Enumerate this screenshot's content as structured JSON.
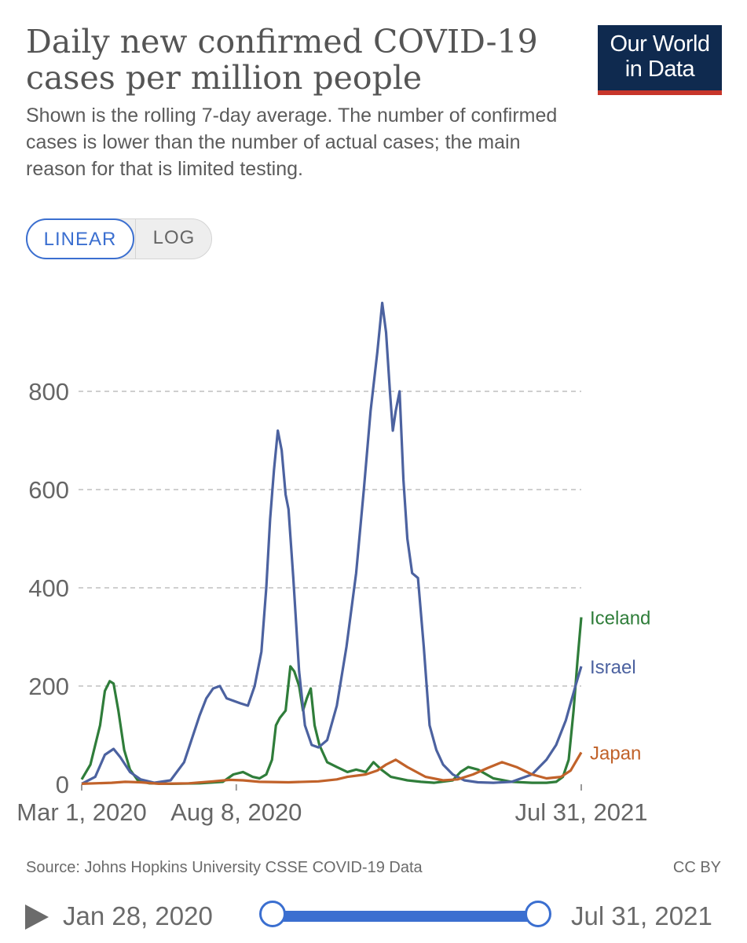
{
  "header": {
    "title": "Daily new confirmed COVID-19 cases per million people",
    "subtitle": "Shown is the rolling 7-day average. The number of confirmed cases is lower than the number of actual cases; the main reason for that is limited testing.",
    "logo_line1": "Our World",
    "logo_line2": "in Data"
  },
  "controls": {
    "linear_label": "LINEAR",
    "log_label": "LOG",
    "active": "LINEAR"
  },
  "footer": {
    "source": "Source: Johns Hopkins University CSSE COVID-19 Data",
    "license": "CC BY"
  },
  "timeline": {
    "start_label": "Jan 28, 2020",
    "end_label": "Jul 31, 2021"
  },
  "colors": {
    "accent": "#3b6fd0",
    "logo_bg": "#0f2a4f",
    "logo_bar": "#c7362b",
    "iceland": "#2f7d3a",
    "israel": "#4c62a0",
    "japan": "#c1622a"
  },
  "chart_data": {
    "type": "line",
    "x_range": [
      "2020-03-01",
      "2021-07-31"
    ],
    "x_ticks": [
      "Mar 1, 2020",
      "Aug 8, 2020",
      "Jul 31, 2021"
    ],
    "x_tick_dates": [
      "2020-03-01",
      "2020-08-08",
      "2021-07-31"
    ],
    "ylim": [
      0,
      1000
    ],
    "y_ticks": [
      0,
      200,
      400,
      600,
      800
    ],
    "gridlines": "dashed",
    "series": [
      {
        "name": "Iceland",
        "color": "#2f7d3a",
        "dates": [
          "2020-03-01",
          "2020-03-10",
          "2020-03-20",
          "2020-03-25",
          "2020-03-30",
          "2020-04-03",
          "2020-04-08",
          "2020-04-14",
          "2020-04-20",
          "2020-04-28",
          "2020-05-10",
          "2020-06-01",
          "2020-07-01",
          "2020-07-25",
          "2020-08-05",
          "2020-08-15",
          "2020-08-25",
          "2020-09-01",
          "2020-09-08",
          "2020-09-14",
          "2020-09-18",
          "2020-09-22",
          "2020-09-28",
          "2020-10-03",
          "2020-10-07",
          "2020-10-12",
          "2020-10-16",
          "2020-10-20",
          "2020-10-24",
          "2020-10-28",
          "2020-11-02",
          "2020-11-10",
          "2020-11-20",
          "2020-12-01",
          "2020-12-10",
          "2020-12-20",
          "2020-12-28",
          "2021-01-05",
          "2021-01-15",
          "2021-02-01",
          "2021-02-15",
          "2021-03-01",
          "2021-03-20",
          "2021-03-28",
          "2021-04-05",
          "2021-04-15",
          "2021-05-01",
          "2021-05-20",
          "2021-06-10",
          "2021-06-25",
          "2021-07-05",
          "2021-07-12",
          "2021-07-18",
          "2021-07-23",
          "2021-07-27",
          "2021-07-31"
        ],
        "values": [
          10,
          40,
          120,
          190,
          210,
          205,
          150,
          70,
          30,
          8,
          2,
          1,
          2,
          5,
          20,
          25,
          15,
          12,
          20,
          50,
          120,
          135,
          150,
          240,
          230,
          200,
          150,
          175,
          195,
          120,
          80,
          45,
          35,
          25,
          30,
          25,
          45,
          30,
          15,
          8,
          5,
          3,
          8,
          25,
          35,
          30,
          12,
          5,
          3,
          3,
          5,
          15,
          50,
          150,
          250,
          340
        ]
      },
      {
        "name": "Israel",
        "color": "#4c62a0",
        "dates": [
          "2020-03-01",
          "2020-03-15",
          "2020-03-25",
          "2020-04-03",
          "2020-04-10",
          "2020-04-20",
          "2020-05-01",
          "2020-05-15",
          "2020-06-01",
          "2020-06-15",
          "2020-07-01",
          "2020-07-08",
          "2020-07-15",
          "2020-07-22",
          "2020-07-29",
          "2020-08-05",
          "2020-08-12",
          "2020-08-20",
          "2020-08-27",
          "2020-09-03",
          "2020-09-08",
          "2020-09-12",
          "2020-09-16",
          "2020-09-20",
          "2020-09-24",
          "2020-09-28",
          "2020-10-01",
          "2020-10-06",
          "2020-10-12",
          "2020-10-18",
          "2020-10-25",
          "2020-11-01",
          "2020-11-10",
          "2020-11-20",
          "2020-11-30",
          "2020-12-10",
          "2020-12-18",
          "2020-12-25",
          "2021-01-01",
          "2021-01-06",
          "2021-01-10",
          "2021-01-14",
          "2021-01-17",
          "2021-01-20",
          "2021-01-24",
          "2021-01-28",
          "2021-02-01",
          "2021-02-06",
          "2021-02-12",
          "2021-02-18",
          "2021-02-24",
          "2021-03-03",
          "2021-03-10",
          "2021-03-20",
          "2021-04-01",
          "2021-04-15",
          "2021-05-01",
          "2021-05-20",
          "2021-06-10",
          "2021-06-25",
          "2021-07-05",
          "2021-07-15",
          "2021-07-25",
          "2021-07-31"
        ],
        "values": [
          1,
          15,
          60,
          72,
          55,
          25,
          10,
          3,
          8,
          45,
          140,
          175,
          195,
          200,
          175,
          170,
          165,
          160,
          200,
          270,
          400,
          540,
          640,
          720,
          680,
          590,
          560,
          420,
          230,
          120,
          80,
          75,
          90,
          160,
          280,
          430,
          600,
          760,
          880,
          980,
          920,
          800,
          720,
          760,
          800,
          620,
          500,
          430,
          420,
          280,
          120,
          70,
          40,
          20,
          8,
          4,
          3,
          5,
          20,
          50,
          80,
          130,
          200,
          240
        ]
      },
      {
        "name": "Japan",
        "color": "#c1622a",
        "dates": [
          "2020-03-01",
          "2020-04-01",
          "2020-04-15",
          "2020-05-01",
          "2020-05-20",
          "2020-06-20",
          "2020-07-15",
          "2020-08-01",
          "2020-08-15",
          "2020-09-01",
          "2020-10-01",
          "2020-11-01",
          "2020-11-20",
          "2020-12-01",
          "2020-12-20",
          "2021-01-01",
          "2021-01-10",
          "2021-01-20",
          "2021-02-01",
          "2021-02-20",
          "2021-03-10",
          "2021-03-25",
          "2021-04-10",
          "2021-04-25",
          "2021-05-10",
          "2021-05-25",
          "2021-06-10",
          "2021-06-25",
          "2021-07-10",
          "2021-07-20",
          "2021-07-31"
        ],
        "values": [
          1,
          3,
          5,
          4,
          1,
          2,
          6,
          9,
          8,
          5,
          4,
          6,
          10,
          15,
          20,
          28,
          40,
          50,
          35,
          15,
          8,
          10,
          20,
          33,
          45,
          35,
          20,
          12,
          15,
          28,
          65
        ]
      }
    ]
  }
}
